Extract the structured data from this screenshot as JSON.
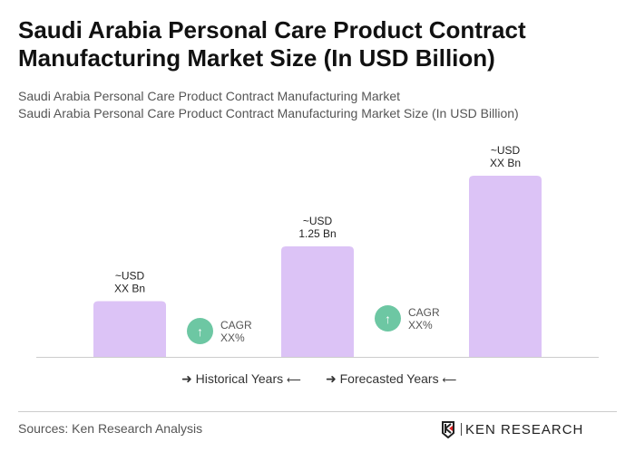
{
  "title": "Saudi Arabia Personal Care Product Contract Manufacturing Market Size (In USD Billion)",
  "subtitle1": "Saudi Arabia Personal Care Product Contract Manufacturing Market",
  "subtitle2": "Saudi Arabia Personal Care Product Contract Manufacturing Market Size (In USD Billion)",
  "chart_data": {
    "type": "bar",
    "categories": [
      "",
      "",
      ""
    ],
    "values": [
      0.63,
      1.25,
      2.05
    ],
    "data_labels": [
      [
        "~USD",
        "XX Bn"
      ],
      [
        "~USD",
        "1.25 Bn"
      ],
      [
        "~USD",
        "XX Bn"
      ]
    ],
    "color": "#dcc3f6",
    "cagr": [
      {
        "label": "CAGR",
        "value": "XX%"
      },
      {
        "label": "CAGR",
        "value": "XX%"
      }
    ],
    "cagr_color": "#6dc7a3",
    "legend": [
      "Historical Years",
      "Forecasted Years"
    ]
  },
  "source": "Sources: Ken Research Analysis",
  "logo": "KEN RESEARCH"
}
